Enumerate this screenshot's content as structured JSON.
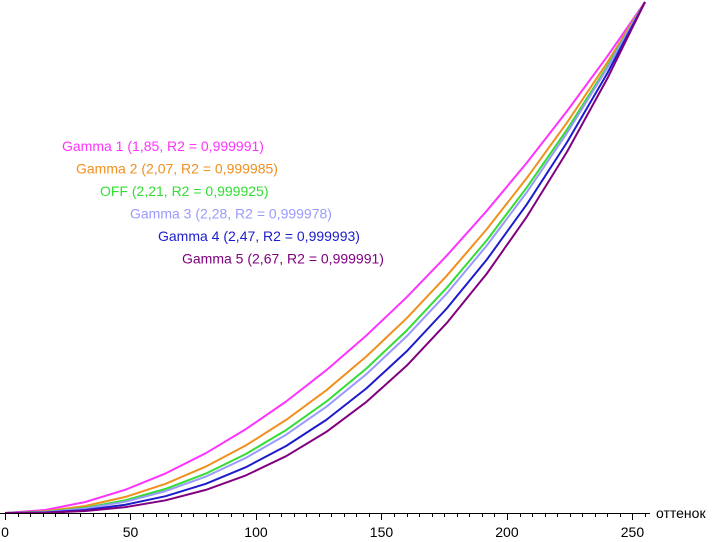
{
  "chart_data": {
    "type": "line",
    "xlabel": "оттенок",
    "ylabel": "",
    "title": "",
    "xlim": [
      0,
      255
    ],
    "ylim": [
      0,
      1
    ],
    "grid": false,
    "x_ticks": [
      0,
      50,
      100,
      150,
      200,
      250
    ],
    "x_tick_labels": [
      "0",
      "50",
      "100",
      "150",
      "200",
      "250"
    ],
    "series": [
      {
        "name": "Gamma 1",
        "label": "Gamma 1 (1,85, R2 = 0,999991)",
        "gamma": 1.85,
        "color": "#ff33ff"
      },
      {
        "name": "Gamma 2",
        "label": "Gamma 2 (2,07, R2 = 0,999985)",
        "gamma": 2.07,
        "color": "#f0901e"
      },
      {
        "name": "OFF",
        "label": "OFF (2,21, R2 = 0,999925)",
        "gamma": 2.21,
        "color": "#33dd33"
      },
      {
        "name": "Gamma 3",
        "label": "Gamma 3 (2,28, R2 = 0,999978)",
        "gamma": 2.28,
        "color": "#9999ff"
      },
      {
        "name": "Gamma 4",
        "label": "Gamma 4 (2,47, R2 = 0,999993)",
        "gamma": 2.47,
        "color": "#1c1ccc"
      },
      {
        "name": "Gamma 5",
        "label": "Gamma 5 (2,67, R2 = 0,999991)",
        "gamma": 2.67,
        "color": "#800080"
      }
    ]
  }
}
